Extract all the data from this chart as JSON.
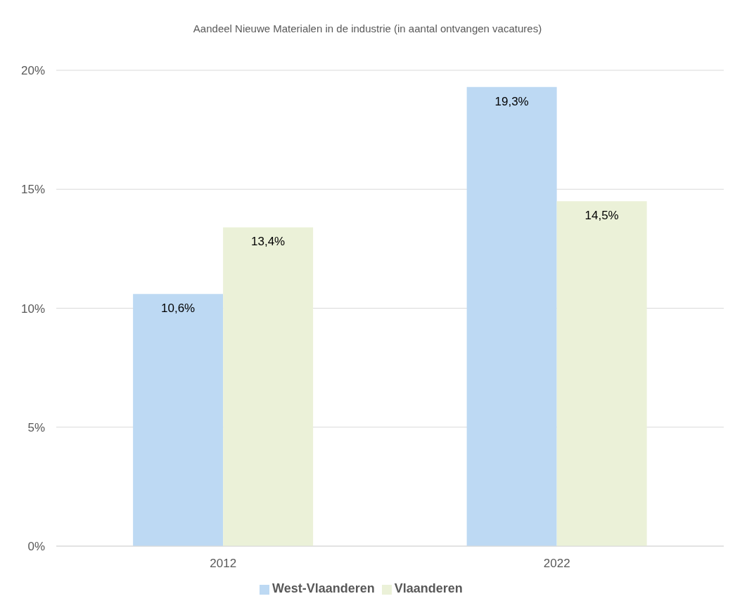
{
  "chart_data": {
    "type": "bar",
    "title": "Aandeel Nieuwe Materialen in de industrie (in aantal ontvangen vacatures)",
    "categories": [
      "2012",
      "2022"
    ],
    "series": [
      {
        "name": "West-Vlaanderen",
        "color": "#bdd9f3",
        "values": [
          10.6,
          19.3
        ],
        "value_labels": [
          "10,6%",
          "19,3%"
        ]
      },
      {
        "name": "Vlaanderen",
        "color": "#ebf1d8",
        "values": [
          13.4,
          14.5
        ],
        "value_labels": [
          "13,4%",
          "14,5%"
        ]
      }
    ],
    "ylim": [
      0,
      20
    ],
    "yticks": [
      {
        "value": 0,
        "label": "0%"
      },
      {
        "value": 5,
        "label": "5%"
      },
      {
        "value": 10,
        "label": "10%"
      },
      {
        "value": 15,
        "label": "15%"
      },
      {
        "value": 20,
        "label": "20%"
      }
    ],
    "grid": "y",
    "legend": "bottom"
  }
}
